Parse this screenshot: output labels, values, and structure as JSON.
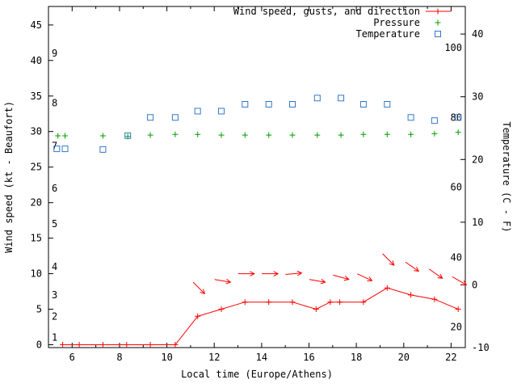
{
  "page": {
    "background": "#ffffff",
    "border_color": "#000000",
    "text_color": "#000000"
  },
  "legend": {
    "position": "top-right",
    "entries": [
      {
        "label": "Wind speed, gusts, and direction",
        "text_color": "#8b0000",
        "symbol": "line-plus",
        "color": "#ff0000"
      },
      {
        "label": "Pressure",
        "text_color": "#00008b",
        "symbol": "plus",
        "color": "#00a000"
      },
      {
        "label": "Temperature",
        "text_color": "#00008b",
        "symbol": "square",
        "color": "#3377cc"
      }
    ]
  },
  "chart_data": {
    "type": "line",
    "title": "",
    "xlabel": "Local time (Europe/Athens)",
    "ylabel_left": "Wind speed (kt - Beaufort)",
    "ylabel_right": "Temperature (C - F)",
    "grid": false,
    "x_range": [
      5.0,
      22.6
    ],
    "x_ticks": [
      6,
      8,
      10,
      12,
      14,
      16,
      18,
      20,
      22
    ],
    "x_minor_ticks": [
      7,
      9,
      11,
      13,
      15,
      17,
      19,
      21
    ],
    "y_left_range": [
      -0.4,
      47.6
    ],
    "y_left_ticks": [
      0,
      5,
      10,
      15,
      20,
      25,
      30,
      35,
      40,
      45
    ],
    "y_right_range": [
      -10,
      44.4
    ],
    "y_right_ticks": [
      -10,
      0,
      10,
      20,
      30,
      40
    ],
    "beaufort_scale_labels": [
      {
        "label": "1",
        "kt": 1
      },
      {
        "label": "2",
        "kt": 4
      },
      {
        "label": "3",
        "kt": 7
      },
      {
        "label": "4",
        "kt": 11
      },
      {
        "label": "5",
        "kt": 17
      },
      {
        "label": "6",
        "kt": 22
      },
      {
        "label": "7",
        "kt": 28
      },
      {
        "label": "8",
        "kt": 34
      },
      {
        "label": "9",
        "kt": 41
      }
    ],
    "fahrenheit_scale_labels": [
      {
        "label": "20",
        "c": -6.7
      },
      {
        "label": "40",
        "c": 4.4
      },
      {
        "label": "60",
        "c": 15.6
      },
      {
        "label": "80",
        "c": 26.7
      },
      {
        "label": "100",
        "c": 37.8
      }
    ],
    "series": [
      {
        "name": "Wind speed",
        "axis": "left",
        "units": "kt",
        "type": "line+plus",
        "color": "#ff0000",
        "points": [
          [
            5.6,
            0
          ],
          [
            6.3,
            0
          ],
          [
            7.3,
            0
          ],
          [
            8.3,
            0
          ],
          [
            9.3,
            0
          ],
          [
            10.35,
            0
          ],
          [
            11.3,
            4
          ],
          [
            12.3,
            5
          ],
          [
            13.3,
            6
          ],
          [
            14.3,
            6
          ],
          [
            15.3,
            6
          ],
          [
            16.3,
            5
          ],
          [
            16.9,
            6
          ],
          [
            17.3,
            6
          ],
          [
            18.3,
            6
          ],
          [
            19.3,
            8
          ],
          [
            20.3,
            7
          ],
          [
            21.3,
            6.4
          ],
          [
            22.3,
            5
          ]
        ]
      },
      {
        "name": "Wind gusts and direction",
        "axis": "left",
        "units": "kt",
        "type": "arrow",
        "color": "#ff0000",
        "points": [
          [
            11.35,
            8,
            45
          ],
          [
            12.35,
            9,
            10
          ],
          [
            13.35,
            10,
            0
          ],
          [
            14.35,
            10,
            0
          ],
          [
            15.35,
            10,
            -5
          ],
          [
            16.35,
            9,
            10
          ],
          [
            17.35,
            9.5,
            15
          ],
          [
            18.35,
            9.5,
            25
          ],
          [
            19.35,
            12,
            45
          ],
          [
            20.35,
            11,
            35
          ],
          [
            21.35,
            10,
            35
          ],
          [
            22.35,
            9,
            30
          ]
        ]
      },
      {
        "name": "Pressure",
        "axis": "left",
        "units": "",
        "type": "plus",
        "color": "#00a000",
        "points": [
          [
            5.4,
            29.4
          ],
          [
            5.7,
            29.4
          ],
          [
            7.3,
            29.4
          ],
          [
            8.35,
            29.3
          ],
          [
            9.3,
            29.5
          ],
          [
            10.35,
            29.6
          ],
          [
            11.3,
            29.6
          ],
          [
            12.3,
            29.5
          ],
          [
            13.3,
            29.5
          ],
          [
            14.3,
            29.5
          ],
          [
            15.3,
            29.5
          ],
          [
            16.35,
            29.5
          ],
          [
            17.35,
            29.5
          ],
          [
            18.3,
            29.6
          ],
          [
            19.3,
            29.6
          ],
          [
            20.3,
            29.6
          ],
          [
            21.3,
            29.7
          ],
          [
            22.3,
            29.9
          ]
        ]
      },
      {
        "name": "Temperature",
        "axis": "right",
        "units": "C",
        "type": "square",
        "color": "#3377cc",
        "points": [
          [
            5.35,
            21.7
          ],
          [
            5.7,
            21.7
          ],
          [
            7.3,
            21.6
          ],
          [
            8.35,
            23.8
          ],
          [
            9.3,
            26.7
          ],
          [
            10.35,
            26.7
          ],
          [
            11.3,
            27.7
          ],
          [
            12.3,
            27.7
          ],
          [
            13.3,
            28.8
          ],
          [
            14.3,
            28.8
          ],
          [
            15.3,
            28.8
          ],
          [
            16.35,
            29.8
          ],
          [
            17.35,
            29.8
          ],
          [
            18.3,
            28.8
          ],
          [
            19.3,
            28.8
          ],
          [
            20.3,
            26.7
          ],
          [
            21.3,
            26.2
          ],
          [
            22.3,
            26.7
          ]
        ]
      }
    ]
  }
}
